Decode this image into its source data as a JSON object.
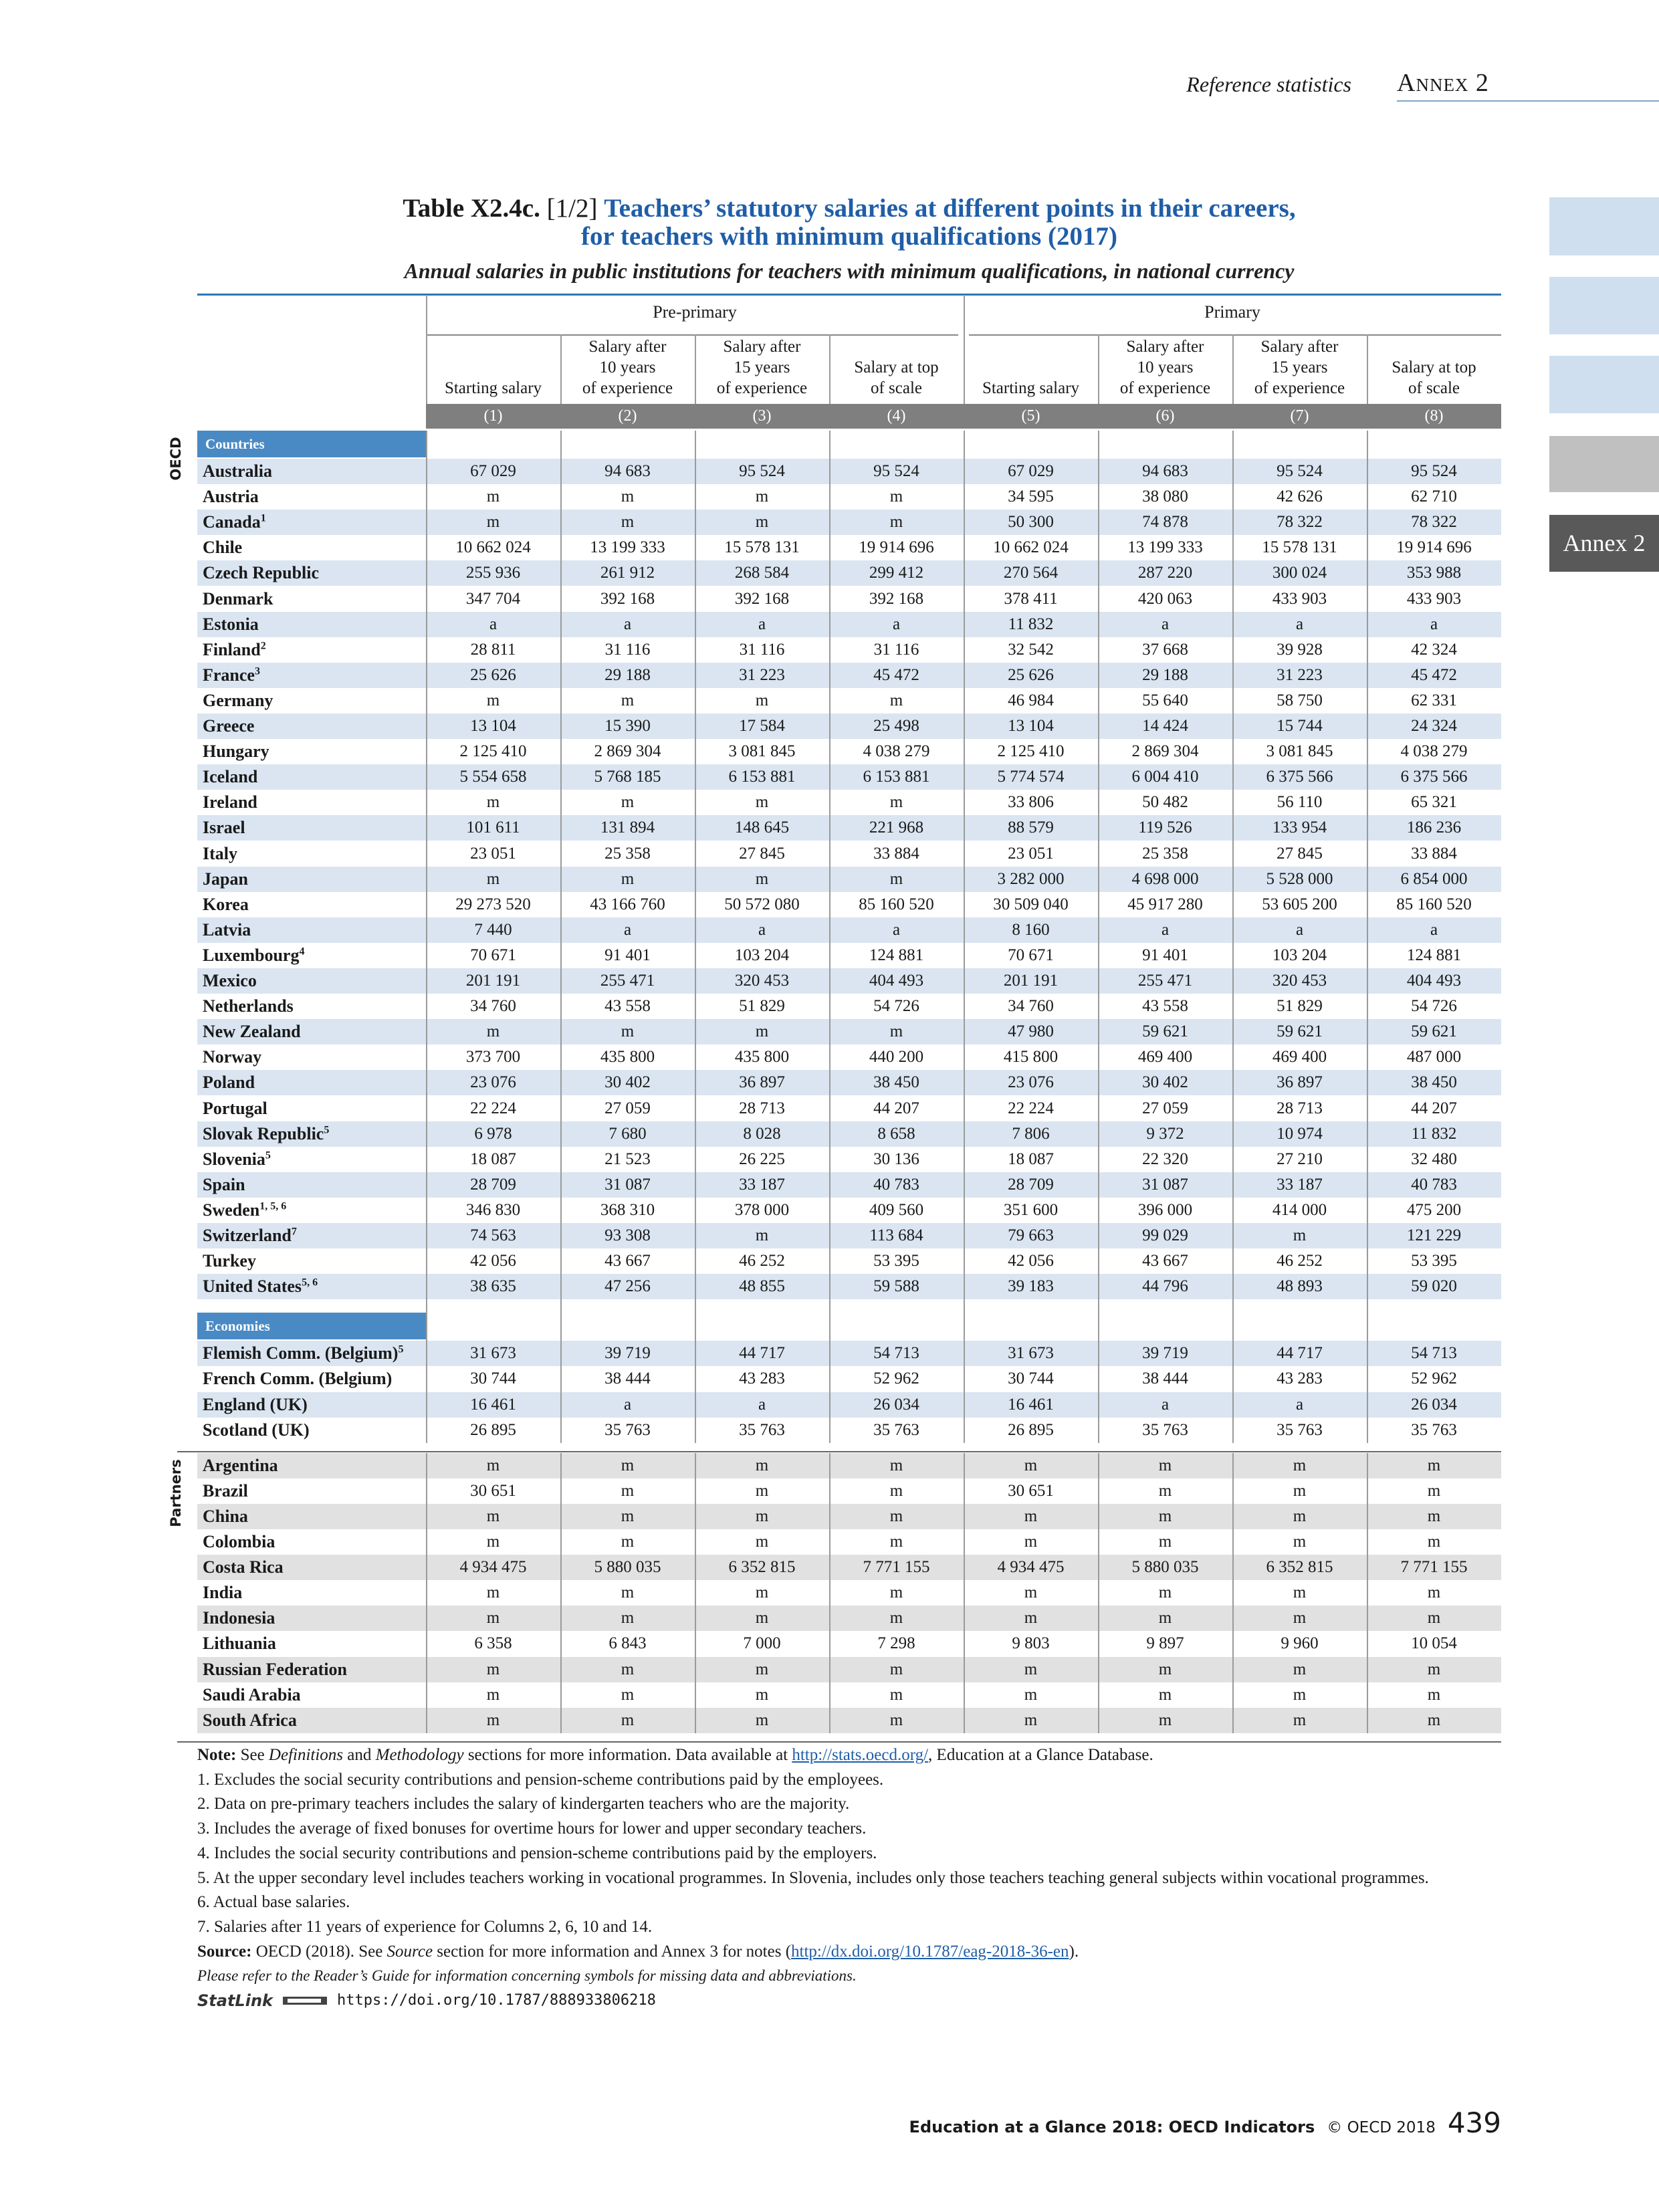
{
  "running_header": {
    "section": "Reference statistics",
    "annex": "Annex 2"
  },
  "side_tab": "Annex 2",
  "title": {
    "label": "Table X2.4c.",
    "part": "[1/2]",
    "line1": "Teachers’ statutory salaries at different points in their careers,",
    "line2": "for teachers with minimum qualifications (2017)",
    "subtitle": "Annual salaries in public institutions for teachers with minimum qualifications, in national currency"
  },
  "table": {
    "groups": [
      "Pre-primary",
      "Primary"
    ],
    "columns": [
      "Starting salary",
      "Salary after\n10 years\nof experience",
      "Salary after\n15 years\nof experience",
      "Salary at top\nof scale",
      "Starting salary",
      "Salary after\n10 years\nof experience",
      "Salary after\n15 years\nof experience",
      "Salary at top\nof scale"
    ],
    "column_numbers": [
      "(1)",
      "(2)",
      "(3)",
      "(4)",
      "(5)",
      "(6)",
      "(7)",
      "(8)"
    ],
    "blocks": [
      {
        "side_label": "OECD",
        "sections": [
          {
            "label": "Countries",
            "rows": [
              {
                "name": "Australia",
                "values": [
                  "67 029",
                  "94 683",
                  "95 524",
                  "95 524",
                  "67 029",
                  "94 683",
                  "95 524",
                  "95 524"
                ]
              },
              {
                "name": "Austria",
                "values": [
                  "m",
                  "m",
                  "m",
                  "m",
                  "34 595",
                  "38 080",
                  "42 626",
                  "62 710"
                ]
              },
              {
                "name": "Canada",
                "note": "1",
                "values": [
                  "m",
                  "m",
                  "m",
                  "m",
                  "50 300",
                  "74 878",
                  "78 322",
                  "78 322"
                ]
              },
              {
                "name": "Chile",
                "values": [
                  "10 662 024",
                  "13 199 333",
                  "15 578 131",
                  "19 914 696",
                  "10 662 024",
                  "13 199 333",
                  "15 578 131",
                  "19 914 696"
                ]
              },
              {
                "name": "Czech Republic",
                "values": [
                  "255 936",
                  "261 912",
                  "268 584",
                  "299 412",
                  "270 564",
                  "287 220",
                  "300 024",
                  "353 988"
                ]
              },
              {
                "name": "Denmark",
                "values": [
                  "347 704",
                  "392 168",
                  "392 168",
                  "392 168",
                  "378 411",
                  "420 063",
                  "433 903",
                  "433 903"
                ]
              },
              {
                "name": "Estonia",
                "values": [
                  "a",
                  "a",
                  "a",
                  "a",
                  "11 832",
                  "a",
                  "a",
                  "a"
                ]
              },
              {
                "name": "Finland",
                "note": "2",
                "values": [
                  "28 811",
                  "31 116",
                  "31 116",
                  "31 116",
                  "32 542",
                  "37 668",
                  "39 928",
                  "42 324"
                ]
              },
              {
                "name": "France",
                "note": "3",
                "values": [
                  "25 626",
                  "29 188",
                  "31 223",
                  "45 472",
                  "25 626",
                  "29 188",
                  "31 223",
                  "45 472"
                ]
              },
              {
                "name": "Germany",
                "values": [
                  "m",
                  "m",
                  "m",
                  "m",
                  "46 984",
                  "55 640",
                  "58 750",
                  "62 331"
                ]
              },
              {
                "name": "Greece",
                "values": [
                  "13 104",
                  "15 390",
                  "17 584",
                  "25 498",
                  "13 104",
                  "14 424",
                  "15 744",
                  "24 324"
                ]
              },
              {
                "name": "Hungary",
                "values": [
                  "2 125 410",
                  "2 869 304",
                  "3 081 845",
                  "4 038 279",
                  "2 125 410",
                  "2 869 304",
                  "3 081 845",
                  "4 038 279"
                ]
              },
              {
                "name": "Iceland",
                "values": [
                  "5 554 658",
                  "5 768 185",
                  "6 153 881",
                  "6 153 881",
                  "5 774 574",
                  "6 004 410",
                  "6 375 566",
                  "6 375 566"
                ]
              },
              {
                "name": "Ireland",
                "values": [
                  "m",
                  "m",
                  "m",
                  "m",
                  "33 806",
                  "50 482",
                  "56 110",
                  "65 321"
                ]
              },
              {
                "name": "Israel",
                "values": [
                  "101 611",
                  "131 894",
                  "148 645",
                  "221 968",
                  "88 579",
                  "119 526",
                  "133 954",
                  "186 236"
                ]
              },
              {
                "name": "Italy",
                "values": [
                  "23 051",
                  "25 358",
                  "27 845",
                  "33 884",
                  "23 051",
                  "25 358",
                  "27 845",
                  "33 884"
                ]
              },
              {
                "name": "Japan",
                "values": [
                  "m",
                  "m",
                  "m",
                  "m",
                  "3 282 000",
                  "4 698 000",
                  "5 528 000",
                  "6 854 000"
                ]
              },
              {
                "name": "Korea",
                "values": [
                  "29 273 520",
                  "43 166 760",
                  "50 572 080",
                  "85 160 520",
                  "30 509 040",
                  "45 917 280",
                  "53 605 200",
                  "85 160 520"
                ]
              },
              {
                "name": "Latvia",
                "values": [
                  "7 440",
                  "a",
                  "a",
                  "a",
                  "8 160",
                  "a",
                  "a",
                  "a"
                ]
              },
              {
                "name": "Luxembourg",
                "note": "4",
                "values": [
                  "70 671",
                  "91 401",
                  "103 204",
                  "124 881",
                  "70 671",
                  "91 401",
                  "103 204",
                  "124 881"
                ]
              },
              {
                "name": "Mexico",
                "values": [
                  "201 191",
                  "255 471",
                  "320 453",
                  "404 493",
                  "201 191",
                  "255 471",
                  "320 453",
                  "404 493"
                ]
              },
              {
                "name": "Netherlands",
                "values": [
                  "34 760",
                  "43 558",
                  "51 829",
                  "54 726",
                  "34 760",
                  "43 558",
                  "51 829",
                  "54 726"
                ]
              },
              {
                "name": "New Zealand",
                "values": [
                  "m",
                  "m",
                  "m",
                  "m",
                  "47 980",
                  "59 621",
                  "59 621",
                  "59 621"
                ]
              },
              {
                "name": "Norway",
                "values": [
                  "373 700",
                  "435 800",
                  "435 800",
                  "440 200",
                  "415 800",
                  "469 400",
                  "469 400",
                  "487 000"
                ]
              },
              {
                "name": "Poland",
                "values": [
                  "23 076",
                  "30 402",
                  "36 897",
                  "38 450",
                  "23 076",
                  "30 402",
                  "36 897",
                  "38 450"
                ]
              },
              {
                "name": "Portugal",
                "values": [
                  "22 224",
                  "27 059",
                  "28 713",
                  "44 207",
                  "22 224",
                  "27 059",
                  "28 713",
                  "44 207"
                ]
              },
              {
                "name": "Slovak Republic",
                "note": "5",
                "values": [
                  "6 978",
                  "7 680",
                  "8 028",
                  "8 658",
                  "7 806",
                  "9 372",
                  "10 974",
                  "11 832"
                ]
              },
              {
                "name": "Slovenia",
                "note": "5",
                "values": [
                  "18 087",
                  "21 523",
                  "26 225",
                  "30 136",
                  "18 087",
                  "22 320",
                  "27 210",
                  "32 480"
                ]
              },
              {
                "name": "Spain",
                "values": [
                  "28 709",
                  "31 087",
                  "33 187",
                  "40 783",
                  "28 709",
                  "31 087",
                  "33 187",
                  "40 783"
                ]
              },
              {
                "name": "Sweden",
                "note": "1, 5, 6",
                "values": [
                  "346 830",
                  "368 310",
                  "378 000",
                  "409 560",
                  "351 600",
                  "396 000",
                  "414 000",
                  "475 200"
                ]
              },
              {
                "name": "Switzerland",
                "note": "7",
                "values": [
                  "74 563",
                  "93 308",
                  "m",
                  "113 684",
                  "79 663",
                  "99 029",
                  "m",
                  "121 229"
                ]
              },
              {
                "name": "Turkey",
                "values": [
                  "42 056",
                  "43 667",
                  "46 252",
                  "53 395",
                  "42 056",
                  "43 667",
                  "46 252",
                  "53 395"
                ]
              },
              {
                "name": "United States",
                "note": "5, 6",
                "values": [
                  "38 635",
                  "47 256",
                  "48 855",
                  "59 588",
                  "39 183",
                  "44 796",
                  "48 893",
                  "59 020"
                ]
              }
            ]
          },
          {
            "label": "Economies",
            "rows": [
              {
                "name": "Flemish Comm. (Belgium)",
                "note": "5",
                "values": [
                  "31 673",
                  "39 719",
                  "44 717",
                  "54 713",
                  "31 673",
                  "39 719",
                  "44 717",
                  "54 713"
                ]
              },
              {
                "name": "French Comm. (Belgium)",
                "values": [
                  "30 744",
                  "38 444",
                  "43 283",
                  "52 962",
                  "30 744",
                  "38 444",
                  "43 283",
                  "52 962"
                ]
              },
              {
                "name": "England (UK)",
                "values": [
                  "16 461",
                  "a",
                  "a",
                  "26 034",
                  "16 461",
                  "a",
                  "a",
                  "26 034"
                ]
              },
              {
                "name": "Scotland (UK)",
                "values": [
                  "26 895",
                  "35 763",
                  "35 763",
                  "35 763",
                  "26 895",
                  "35 763",
                  "35 763",
                  "35 763"
                ]
              }
            ]
          }
        ]
      },
      {
        "side_label": "Partners",
        "sections": [
          {
            "rows": [
              {
                "name": "Argentina",
                "values": [
                  "m",
                  "m",
                  "m",
                  "m",
                  "m",
                  "m",
                  "m",
                  "m"
                ]
              },
              {
                "name": "Brazil",
                "values": [
                  "30 651",
                  "m",
                  "m",
                  "m",
                  "30 651",
                  "m",
                  "m",
                  "m"
                ]
              },
              {
                "name": "China",
                "values": [
                  "m",
                  "m",
                  "m",
                  "m",
                  "m",
                  "m",
                  "m",
                  "m"
                ]
              },
              {
                "name": "Colombia",
                "values": [
                  "m",
                  "m",
                  "m",
                  "m",
                  "m",
                  "m",
                  "m",
                  "m"
                ]
              },
              {
                "name": "Costa Rica",
                "values": [
                  "4 934 475",
                  "5 880 035",
                  "6 352 815",
                  "7 771 155",
                  "4 934 475",
                  "5 880 035",
                  "6 352 815",
                  "7 771 155"
                ]
              },
              {
                "name": "India",
                "values": [
                  "m",
                  "m",
                  "m",
                  "m",
                  "m",
                  "m",
                  "m",
                  "m"
                ]
              },
              {
                "name": "Indonesia",
                "values": [
                  "m",
                  "m",
                  "m",
                  "m",
                  "m",
                  "m",
                  "m",
                  "m"
                ]
              },
              {
                "name": "Lithuania",
                "values": [
                  "6 358",
                  "6 843",
                  "7 000",
                  "7 298",
                  "9 803",
                  "9 897",
                  "9 960",
                  "10 054"
                ]
              },
              {
                "name": "Russian Federation",
                "values": [
                  "m",
                  "m",
                  "m",
                  "m",
                  "m",
                  "m",
                  "m",
                  "m"
                ]
              },
              {
                "name": "Saudi Arabia",
                "values": [
                  "m",
                  "m",
                  "m",
                  "m",
                  "m",
                  "m",
                  "m",
                  "m"
                ]
              },
              {
                "name": "South Africa",
                "values": [
                  "m",
                  "m",
                  "m",
                  "m",
                  "m",
                  "m",
                  "m",
                  "m"
                ]
              }
            ]
          }
        ]
      }
    ]
  },
  "note": {
    "label": "Note:",
    "t1": "See",
    "definitions": "Definitions",
    "t2": "and",
    "methodology": "Methodology",
    "t3": "sections for more information. Data available at",
    "link": "http://stats.oecd.org/",
    "t4": ", Education at a Glance Database."
  },
  "footnotes": [
    "1. Excludes the social security contributions and pension-scheme contributions paid by the employees.",
    "2. Data on pre-primary teachers includes the salary of kindergarten teachers who are the majority.",
    "3. Includes the average of fixed bonuses for overtime hours for lower and upper secondary teachers.",
    "4. Includes the social security contributions and pension-scheme contributions paid by the employers.",
    "5. At the upper secondary level includes teachers working in vocational programmes. In Slovenia, includes only those teachers teaching general subjects within vocational programmes.",
    "6. Actual base salaries.",
    "7. Salaries after 11 years of experience for Columns 2, 6, 10 and 14."
  ],
  "source": {
    "label": "Source:",
    "t1": "OECD (2018). See",
    "source_word": "Source",
    "t2": "section for more information and Annex 3 for notes (",
    "link": "http://dx.doi.org/10.1787/eag-2018-36-en",
    "t3": ")."
  },
  "guide": "Please refer to the Reader’s Guide for information concerning symbols for missing data and abbreviations.",
  "statlink": {
    "label": "StatLink",
    "url": "https://doi.org/10.1787/888933806218"
  },
  "footer": {
    "publication": "Education at a Glance 2018: OECD Indicators",
    "copyright": "© OECD 2018",
    "page": "439"
  }
}
